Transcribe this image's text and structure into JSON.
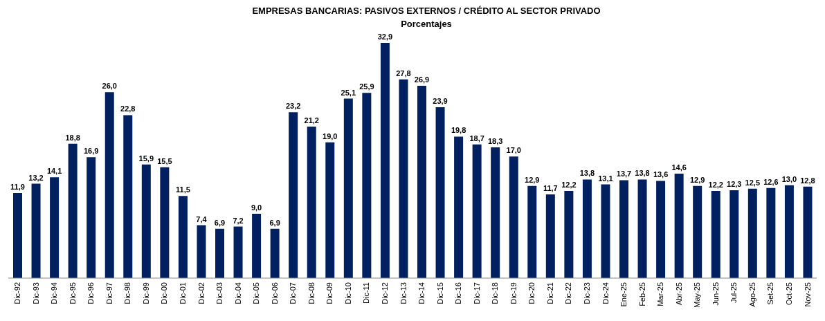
{
  "chart_data": {
    "type": "bar",
    "title": "EMPRESAS BANCARIAS: PASIVOS EXTERNOS / CRÉDITO AL SECTOR PRIVADO",
    "subtitle": "Porcentajes",
    "categories": [
      "Dic-92",
      "Dic-93",
      "Dic-94",
      "Dic-95",
      "Dic-96",
      "Dic-97",
      "Dic-98",
      "Dic-99",
      "Dic-00",
      "Dic-01",
      "Dic-02",
      "Dic-03",
      "Dic-04",
      "Dic-05",
      "Dic-06",
      "Dic-07",
      "Dic-08",
      "Dic-09",
      "Dic-10",
      "Dic-11",
      "Dic-12",
      "Dic-13",
      "Dic-14",
      "Dic-15",
      "Dic-16",
      "Dic-17",
      "Dic-18",
      "Dic-19",
      "Dic-20",
      "Dic-21",
      "Dic-22",
      "Dic-23",
      "Dic-24",
      "Ene-25",
      "Feb-25",
      "Mar-25",
      "Abr-25",
      "May-25",
      "Jun-25",
      "Jul-25",
      "Ago-25",
      "Set-25",
      "Oct-25",
      "Nov-25"
    ],
    "values": [
      11.9,
      13.2,
      14.1,
      18.8,
      16.9,
      26.0,
      22.8,
      15.9,
      15.5,
      11.5,
      7.4,
      6.9,
      7.2,
      9.0,
      6.9,
      23.2,
      21.2,
      19.0,
      25.1,
      25.9,
      32.9,
      27.8,
      26.9,
      23.9,
      19.8,
      18.7,
      18.3,
      17.0,
      12.9,
      11.7,
      12.2,
      13.8,
      13.1,
      13.7,
      13.8,
      13.6,
      14.6,
      12.9,
      12.2,
      12.3,
      12.5,
      12.6,
      13.0,
      12.8
    ],
    "value_labels": [
      "11,9",
      "13,2",
      "14,1",
      "18,8",
      "16,9",
      "26,0",
      "22,8",
      "15,9",
      "15,5",
      "11,5",
      "7,4",
      "6,9",
      "7,2",
      "9,0",
      "6,9",
      "23,2",
      "21,2",
      "19,0",
      "25,1",
      "25,9",
      "32,9",
      "27,8",
      "26,9",
      "23,9",
      "19,8",
      "18,7",
      "18,3",
      "17,0",
      "12,9",
      "11,7",
      "12,2",
      "13,8",
      "13,1",
      "13,7",
      "13,8",
      "13,6",
      "14,6",
      "12,9",
      "12,2",
      "12,3",
      "12,5",
      "12,6",
      "13,0",
      "12,8"
    ],
    "color": "#002060",
    "grid": false,
    "legend": false
  }
}
